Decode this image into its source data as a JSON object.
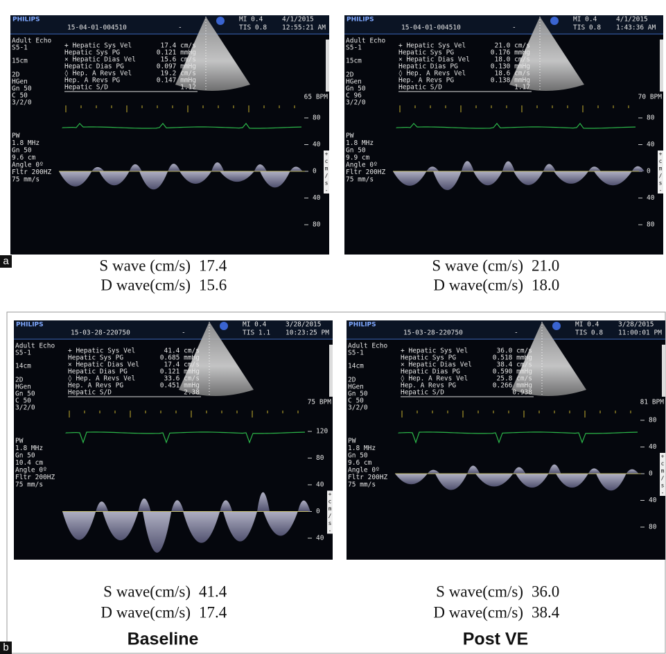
{
  "figure": {
    "labels": [
      "a",
      "b"
    ],
    "panels": [
      {
        "header": {
          "brand": "PHILIPS",
          "id": "15-04-01-004510",
          "dash": "-",
          "mi": "MI 0.4",
          "tis": "TIS 0.8",
          "date": "4/1/2015",
          "time": "12:55:21 AM"
        },
        "settings": [
          "Adult Echo",
          "S5-1",
          "15cm",
          "2D",
          "HGen",
          "Gn 50",
          "C 50",
          "3/2/0"
        ],
        "pw": [
          "PW",
          "1.8 MHz",
          "Gn 50",
          "9.6 cm",
          "Angle 0º",
          "Fltr 200HZ",
          "75 mm/s"
        ],
        "measurements": [
          [
            "+ Hepatic Sys Vel",
            "17.4 cm/s"
          ],
          [
            "Hepatic Sys PG",
            "0.121 mmHg"
          ],
          [
            "× Hepatic Dias Vel",
            "15.6 cm/s"
          ],
          [
            "Hepatic Dias PG",
            "0.097 mmHg"
          ],
          [
            "◊ Hep. A Revs Vel",
            "19.2 cm/s"
          ],
          [
            "Hep. A Revs PG",
            "0.147 mmHg"
          ],
          [
            "Hepatic S/D",
            "1.12"
          ]
        ],
        "bpm": "65 BPM",
        "scale": [
          "80",
          "40",
          "0",
          "40",
          "80"
        ],
        "unit": [
          "+",
          "c",
          "m",
          "/",
          "s",
          "-"
        ],
        "s_wave": {
          "label": "S wave (cm/s)",
          "value": "17.4"
        },
        "d_wave": {
          "label": "D wave(cm/s)",
          "value": "15.6"
        }
      },
      {
        "header": {
          "brand": "PHILIPS",
          "id": "15-04-01-004510",
          "dash": "-",
          "mi": "MI 0.4",
          "tis": "TIS 0.8",
          "date": "4/1/2015",
          "time": "1:43:36 AM"
        },
        "settings": [
          "Adult Echo",
          "S5-1",
          "15cm",
          "2D",
          "HGen",
          "Gn 50",
          "C 96",
          "3/2/0"
        ],
        "pw": [
          "PW",
          "1.8 MHz",
          "Gn 50",
          "9.9 cm",
          "Angle 0º",
          "Fltr 200HZ",
          "75 mm/s"
        ],
        "measurements": [
          [
            "+ Hepatic Sys Vel",
            "21.0 cm/s"
          ],
          [
            "Hepatic Sys PG",
            "0.176 mmHg"
          ],
          [
            "× Hepatic Dias Vel",
            "18.0 cm/s"
          ],
          [
            "Hepatic Dias PG",
            "0.130 mmHg"
          ],
          [
            "◊ Hep. A Revs Vel",
            "18.6 cm/s"
          ],
          [
            "Hep. A Revs PG",
            "0.138 mmHg"
          ],
          [
            "Hepatic S/D",
            "1.17"
          ]
        ],
        "bpm": "70 BPM",
        "scale": [
          "80",
          "40",
          "0",
          "40",
          "80"
        ],
        "unit": [
          "+",
          "c",
          "m",
          "/",
          "s",
          "-"
        ],
        "s_wave": {
          "label": "S wave (cm/s)",
          "value": "21.0"
        },
        "d_wave": {
          "label": "D wave(cm/s)",
          "value": "18.0"
        }
      },
      {
        "header": {
          "brand": "PHILIPS",
          "id": "15-03-28-220750",
          "dash": "-",
          "mi": "MI 0.4",
          "tis": "TIS 1.1",
          "date": "3/28/2015",
          "time": "10:23:25 PM"
        },
        "settings": [
          "Adult Echo",
          "S5-1",
          "14cm",
          "2D",
          "HGen",
          "Gn 50",
          "C 50",
          "3/2/0"
        ],
        "pw": [
          "PW",
          "1.8 MHz",
          "Gn 50",
          "10.4 cm",
          "Angle 0º",
          "Fltr 200HZ",
          "75 mm/s"
        ],
        "measurements": [
          [
            "+ Hepatic Sys Vel",
            "41.4 cm/s"
          ],
          [
            "Hepatic Sys PG",
            "0.685 mmHg"
          ],
          [
            "× Hepatic Dias Vel",
            "17.4 cm/s"
          ],
          [
            "Hepatic Dias PG",
            "0.121 mmHg"
          ],
          [
            "◊ Hep. A Revs Vel",
            "33.6 cm/s"
          ],
          [
            "Hep. A Revs PG",
            "0.451 mmHg"
          ],
          [
            "Hepatic S/D",
            "2.38"
          ]
        ],
        "bpm": "75 BPM",
        "scale": [
          "120",
          "80",
          "40",
          "0",
          "40"
        ],
        "unit": [
          "+",
          "c",
          "m",
          "/",
          "s",
          "-"
        ],
        "s_wave": {
          "label": "S wave(cm/s)",
          "value": "41.4"
        },
        "d_wave": {
          "label": "D wave(cm/s)",
          "value": "17.4"
        },
        "caption": "Baseline"
      },
      {
        "header": {
          "brand": "PHILIPS",
          "id": "15-03-28-220750",
          "dash": "-",
          "mi": "MI 0.4",
          "tis": "TIS 0.8",
          "date": "3/28/2015",
          "time": "11:00:01 PM"
        },
        "settings": [
          "Adult Echo",
          "S5-1",
          "14cm",
          "2D",
          "HGen",
          "Gn 50",
          "C 50",
          "3/2/0"
        ],
        "pw": [
          "PW",
          "1.8 MHz",
          "Gn 50",
          "9.6 cm",
          "Angle 0º",
          "Fltr 200HZ",
          "75 mm/s"
        ],
        "measurements": [
          [
            "+ Hepatic Sys Vel",
            "36.0 cm/s"
          ],
          [
            "Hepatic Sys PG",
            "0.518 mmHg"
          ],
          [
            "× Hepatic Dias Vel",
            "38.4 cm/s"
          ],
          [
            "Hepatic Dias PG",
            "0.590 mmHg"
          ],
          [
            "◊ Hep. A Revs Vel",
            "25.8 cm/s"
          ],
          [
            "Hep. A Revs PG",
            "0.266 mmHg"
          ],
          [
            "Hepatic S/D",
            "0.938"
          ]
        ],
        "bpm": "81 BPM",
        "scale": [
          "80",
          "40",
          "0",
          "40",
          "80"
        ],
        "unit": [
          "+",
          "c",
          "m",
          "/",
          "s",
          "-"
        ],
        "s_wave": {
          "label": "S wave(cm/s)",
          "value": "36.0"
        },
        "d_wave": {
          "label": "D wave(cm/s)",
          "value": "38.4"
        },
        "caption": "Post VE"
      }
    ]
  }
}
